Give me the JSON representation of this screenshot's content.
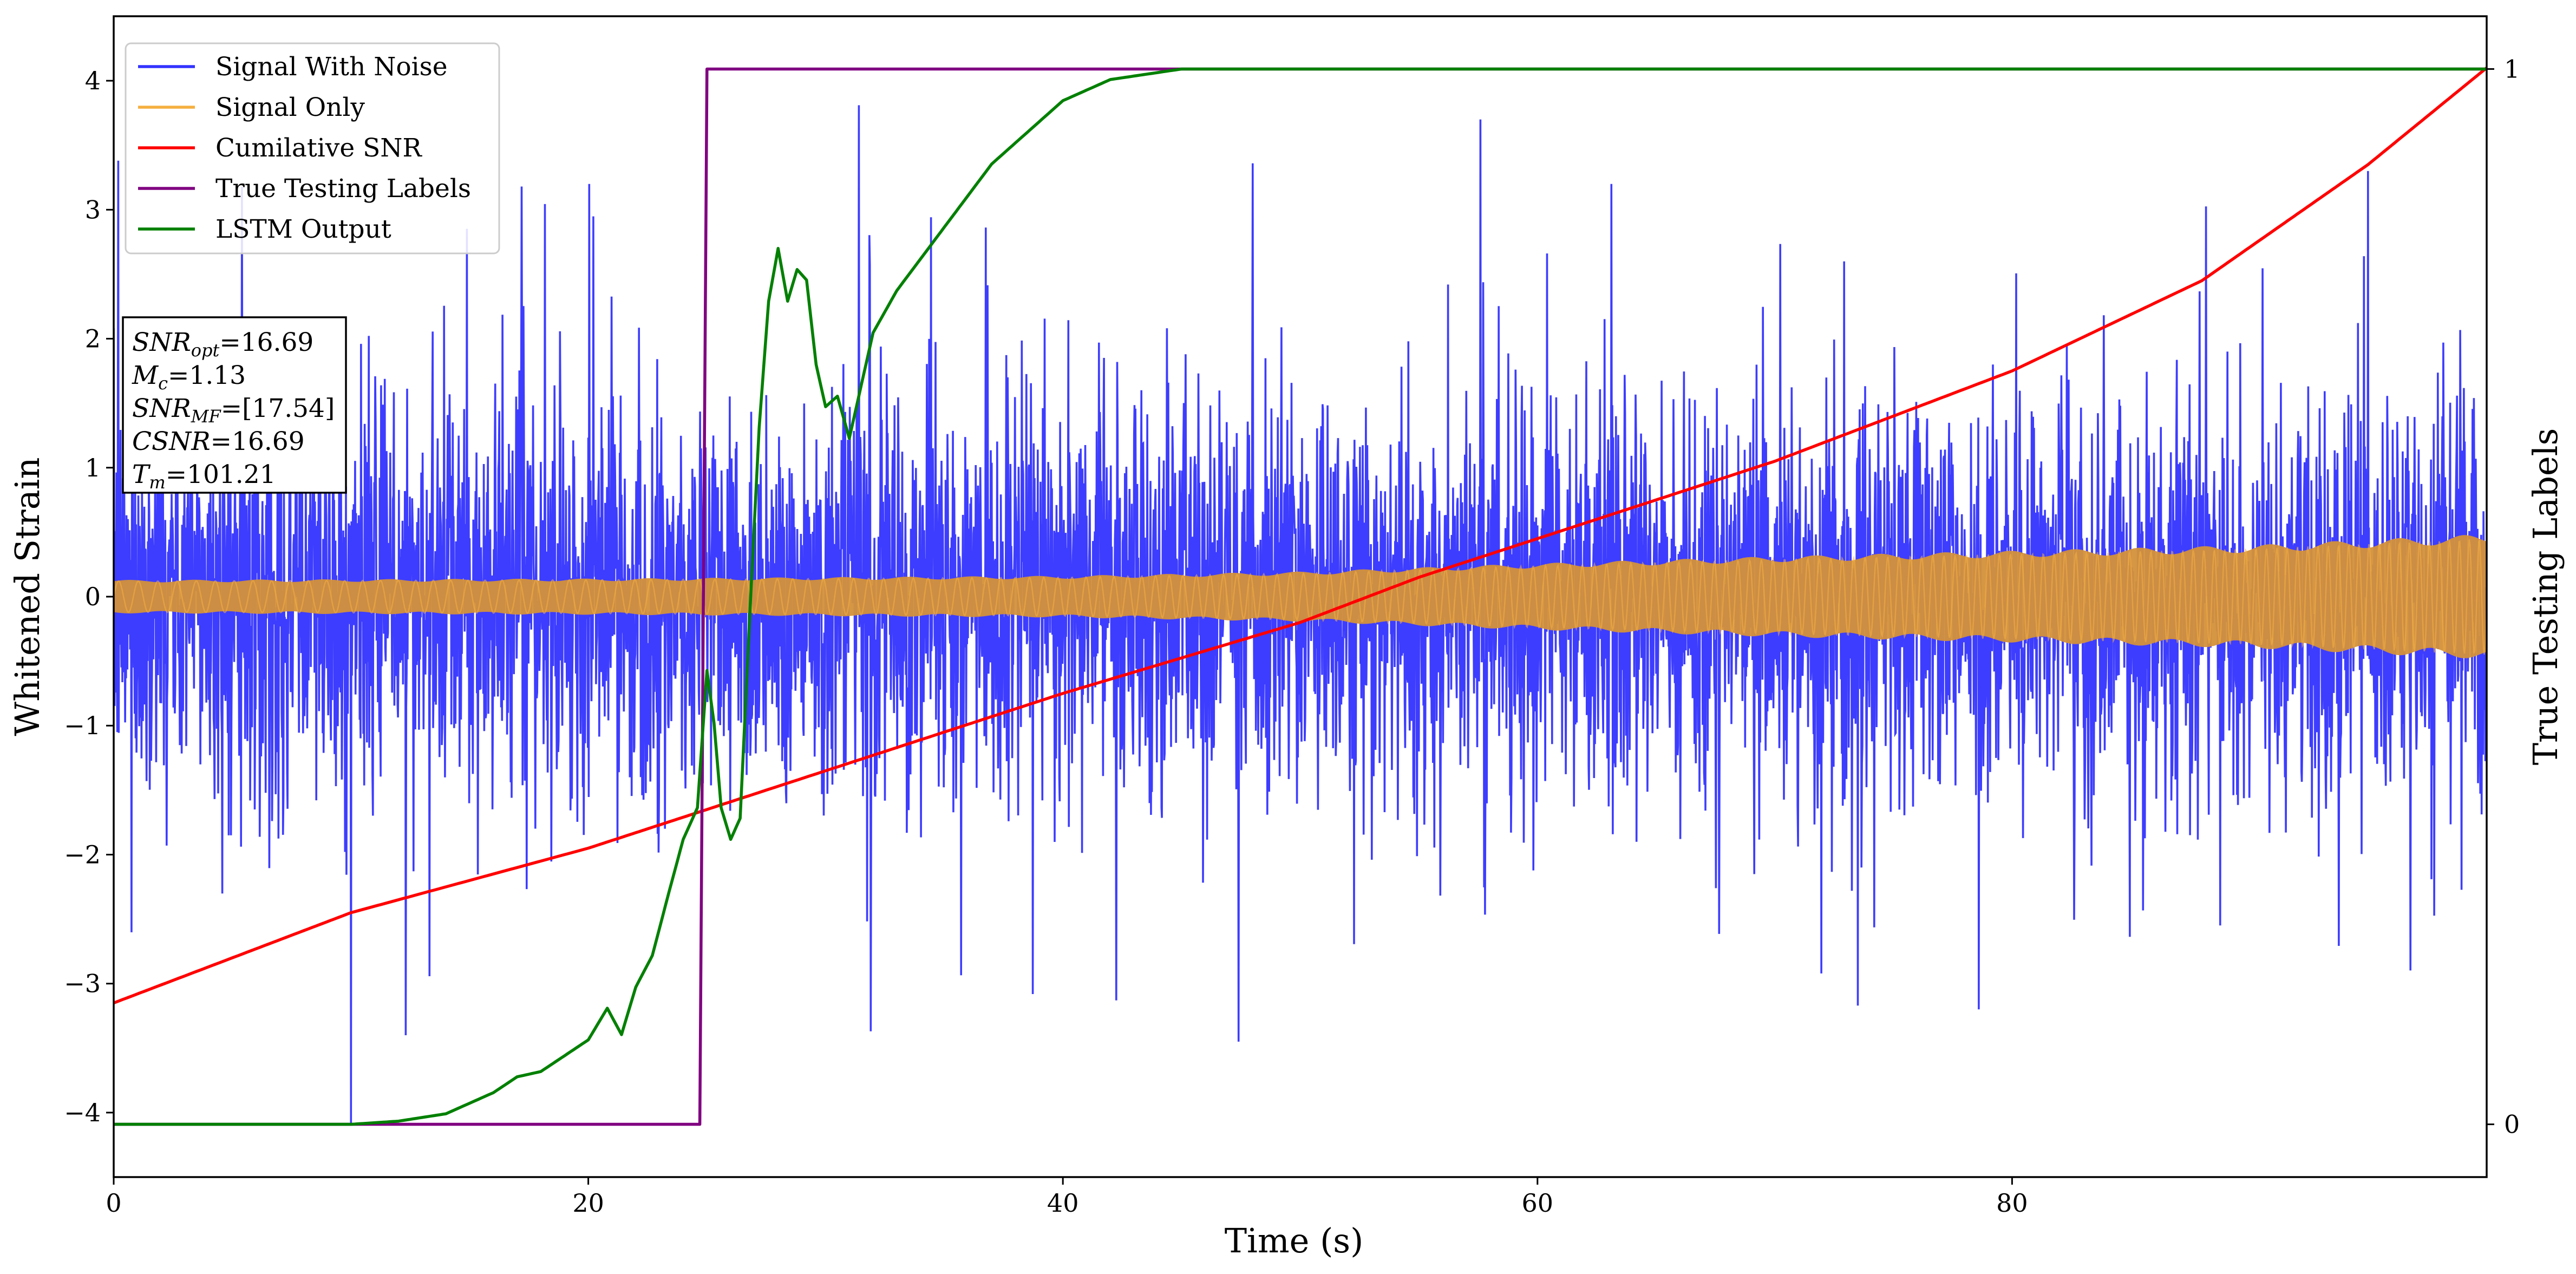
{
  "chart_data": {
    "type": "line",
    "xlabel": "Time (s)",
    "ylabel": "Whitened Strain",
    "y2label": "True Testing Labels",
    "xlim": [
      0,
      100
    ],
    "ylim": [
      -4.5,
      4.5
    ],
    "y2lim": [
      -0.05,
      1.05
    ],
    "xticks": [
      {
        "value": 0,
        "label": "0"
      },
      {
        "value": 20,
        "label": "20"
      },
      {
        "value": 40,
        "label": "40"
      },
      {
        "value": 60,
        "label": "60"
      },
      {
        "value": 80,
        "label": "80"
      }
    ],
    "yticks": [
      {
        "value": -4,
        "label": "−4"
      },
      {
        "value": -3,
        "label": "−3"
      },
      {
        "value": -2,
        "label": "−2"
      },
      {
        "value": -1,
        "label": "−1"
      },
      {
        "value": 0,
        "label": "0"
      },
      {
        "value": 1,
        "label": "1"
      },
      {
        "value": 2,
        "label": "2"
      },
      {
        "value": 3,
        "label": "3"
      },
      {
        "value": 4,
        "label": "4"
      }
    ],
    "y2ticks": [
      {
        "value": 0,
        "label": "0"
      },
      {
        "value": 1,
        "label": "1"
      }
    ],
    "legend": {
      "placement": "top-left",
      "entries": [
        {
          "label": "Signal With Noise",
          "color": "#3333ff"
        },
        {
          "label": "Signal Only",
          "color": "#f5b041"
        },
        {
          "label": "Cumilative SNR",
          "color": "#ff0000"
        },
        {
          "label": "True Testing Labels",
          "color": "#800080"
        },
        {
          "label": "LSTM Output",
          "color": "#008000"
        }
      ]
    },
    "annotation": {
      "placement": "left",
      "lines": [
        {
          "main": "SNR",
          "sub": "opt",
          "value": "=16.69"
        },
        {
          "main": "M",
          "sub": "c",
          "value": "=1.13"
        },
        {
          "main": "SNR",
          "sub": "MF",
          "value": "=[17.54]"
        },
        {
          "main": "CSNR",
          "sub": "",
          "value": "=16.69"
        },
        {
          "main": "T",
          "sub": "m",
          "value": "=101.21"
        }
      ]
    },
    "series": [
      {
        "name": "Signal With Noise",
        "color": "#3333ff",
        "axis": "left",
        "description": "whitened strain noise, typical amplitude about ±1.3, spikes to about ±3.8",
        "noise_sigma": 0.75,
        "peak_spikes": [
          {
            "x": 0.2,
            "y": 3.38
          },
          {
            "x": 5.4,
            "y": 3.18
          },
          {
            "x": 10.0,
            "y": -4.1
          },
          {
            "x": 12.3,
            "y": -3.4
          },
          {
            "x": 17.2,
            "y": 3.18
          },
          {
            "x": 31.4,
            "y": 3.81
          },
          {
            "x": 31.9,
            "y": -3.37
          },
          {
            "x": 47.4,
            "y": -3.45
          },
          {
            "x": 48.0,
            "y": 3.36
          },
          {
            "x": 57.6,
            "y": 3.7
          },
          {
            "x": 73.5,
            "y": -3.17
          },
          {
            "x": 95.0,
            "y": 3.3
          }
        ]
      },
      {
        "name": "Signal Only",
        "color": "#f5b041",
        "axis": "left",
        "description": "chirp signal, amplitude envelope grows from about 0.12 at t=0 to about 0.45 at t=100",
        "envelope": [
          {
            "x": 0,
            "amp": 0.12
          },
          {
            "x": 20,
            "amp": 0.13
          },
          {
            "x": 40,
            "amp": 0.15
          },
          {
            "x": 50,
            "amp": 0.18
          },
          {
            "x": 60,
            "amp": 0.24
          },
          {
            "x": 70,
            "amp": 0.29
          },
          {
            "x": 80,
            "amp": 0.33
          },
          {
            "x": 90,
            "amp": 0.37
          },
          {
            "x": 100,
            "amp": 0.45
          }
        ]
      },
      {
        "name": "Cumilative SNR",
        "color": "#ff0000",
        "axis": "left",
        "x": [
          0,
          10,
          20,
          25,
          30,
          40,
          50,
          55,
          60,
          70,
          80,
          88,
          95,
          100
        ],
        "y": [
          -3.15,
          -2.45,
          -1.95,
          -1.65,
          -1.35,
          -0.75,
          -0.2,
          0.15,
          0.45,
          1.05,
          1.75,
          2.45,
          3.35,
          4.1
        ]
      },
      {
        "name": "True Testing Labels",
        "color": "#800080",
        "axis": "right",
        "x": [
          0,
          24.7,
          25.0,
          100
        ],
        "y": [
          0,
          0,
          1,
          1
        ]
      },
      {
        "name": "LSTM Output",
        "color": "#008000",
        "axis": "right",
        "x": [
          0,
          10,
          12,
          14,
          16,
          17,
          18,
          19,
          20,
          20.8,
          21.4,
          22,
          22.7,
          23.4,
          24.0,
          24.6,
          25.0,
          25.3,
          25.6,
          26.0,
          26.4,
          26.8,
          27.2,
          27.6,
          28.0,
          28.4,
          28.8,
          29.2,
          29.6,
          30.0,
          30.5,
          31.0,
          31.5,
          32.0,
          33.0,
          34.0,
          35.0,
          36.0,
          37.0,
          38.0,
          39.0,
          40.0,
          42.0,
          45.0,
          50.0,
          100
        ],
        "y": [
          0,
          0,
          0.003,
          0.01,
          0.03,
          0.045,
          0.05,
          0.065,
          0.08,
          0.11,
          0.085,
          0.13,
          0.16,
          0.22,
          0.27,
          0.3,
          0.43,
          0.38,
          0.3,
          0.27,
          0.29,
          0.48,
          0.66,
          0.78,
          0.83,
          0.78,
          0.81,
          0.8,
          0.72,
          0.68,
          0.69,
          0.65,
          0.7,
          0.75,
          0.79,
          0.82,
          0.85,
          0.88,
          0.91,
          0.93,
          0.95,
          0.97,
          0.99,
          1.0,
          1.0,
          1.0
        ]
      }
    ]
  }
}
